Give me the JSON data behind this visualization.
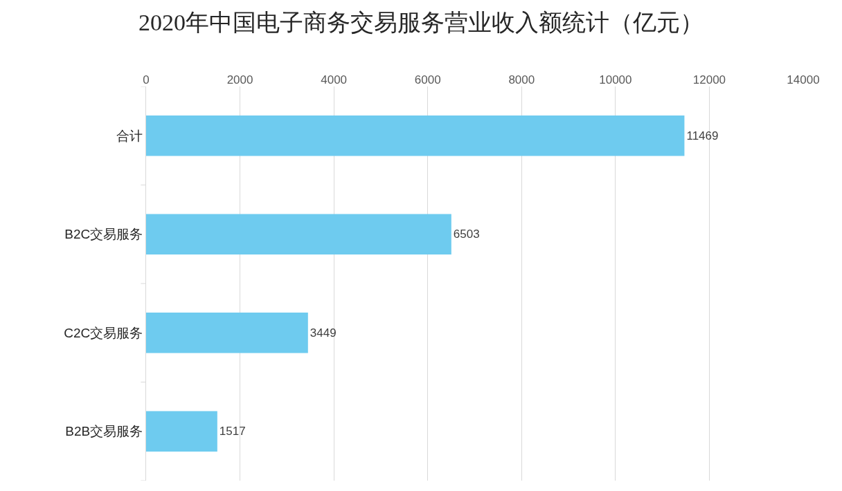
{
  "chart_data": {
    "type": "bar",
    "orientation": "horizontal",
    "title": "2020年中国电子商务交易服务营业收入额统计（亿元）",
    "categories": [
      "合计",
      "B2C交易服务",
      "C2C交易服务",
      "B2B交易服务"
    ],
    "values": [
      11469,
      6503,
      3449,
      1517
    ],
    "color": "#6ecbef",
    "xlim": [
      0,
      14000
    ],
    "xticks": [
      0,
      2000,
      4000,
      6000,
      8000,
      10000,
      12000,
      14000
    ],
    "grid": "x",
    "data_labels": true
  }
}
